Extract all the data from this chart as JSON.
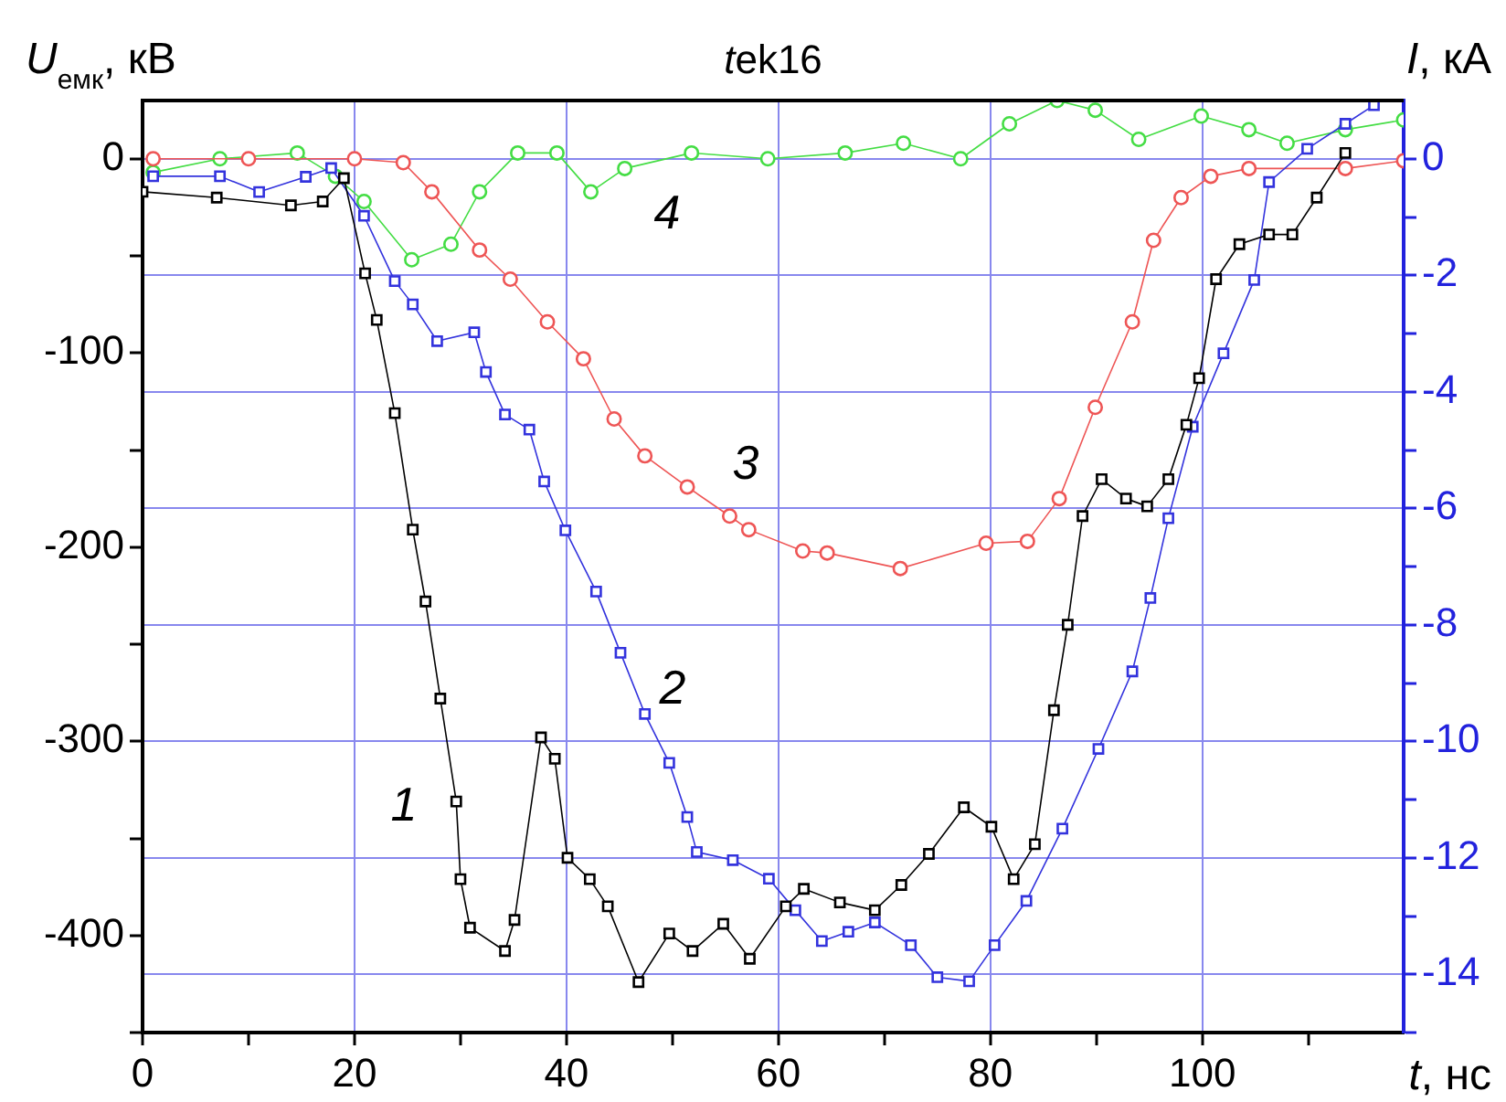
{
  "chart_data": {
    "type": "line",
    "title": "tek16",
    "xlabel": "t, нс",
    "ylabel": "U$_{емк}$, кВ",
    "y2label": "I, кА",
    "xlim": [
      0,
      119
    ],
    "xticks": [
      0,
      {
        "value": 10,
        "label": null
      },
      20,
      {
        "value": 30,
        "label": null
      },
      40,
      {
        "value": 50,
        "label": null
      },
      60,
      {
        "value": 70,
        "label": null
      },
      80,
      {
        "value": 90,
        "label": null
      },
      100,
      {
        "value": 110,
        "label": null
      }
    ],
    "ylim": [
      -450,
      30
    ],
    "yticks": [
      {
        "value": -450,
        "label": null
      },
      -400,
      {
        "value": -350,
        "label": null
      },
      -300,
      {
        "value": -250,
        "label": null
      },
      -200,
      {
        "value": -150,
        "label": null
      },
      -100,
      {
        "value": -50,
        "label": null
      },
      0
    ],
    "y2lim": [
      -15,
      1
    ],
    "y2ticks": [
      {
        "value": -15,
        "label": null
      },
      -14,
      {
        "value": -13,
        "label": null
      },
      -12,
      {
        "value": -11,
        "label": null
      },
      -10,
      {
        "value": -9,
        "label": null
      },
      -8,
      {
        "value": -7,
        "label": null
      },
      -6,
      {
        "value": -5,
        "label": null
      },
      -4,
      {
        "value": -3,
        "label": null
      },
      -2,
      {
        "value": -1,
        "label": null
      },
      0
    ],
    "grid": true,
    "legend": false,
    "series": [
      {
        "name": "1",
        "color": "#000000",
        "marker": "square",
        "x": [
          0,
          7,
          14,
          17,
          19,
          21,
          22.1,
          23.8,
          25.5,
          26.7,
          28.1,
          29.6,
          30,
          30.9,
          34.2,
          35.1,
          37.6,
          38.9,
          40.1,
          42.2,
          43.9,
          46.8,
          49.7,
          51.9,
          54.8,
          57.3,
          60.7,
          62.4,
          65.8,
          69.1,
          71.6,
          74.2,
          77.5,
          80.1,
          82.2,
          84.2,
          86,
          87.3,
          88.7,
          90.5,
          92.8,
          94.8,
          96.8,
          98.5,
          99.7,
          101.3,
          103.5,
          106.3,
          108.5,
          110.8,
          113.5
        ],
        "values": [
          -17,
          -20,
          -24,
          -22,
          -10,
          -59,
          -83,
          -131,
          -191,
          -228,
          -278,
          -331,
          -371,
          -396,
          -408,
          -392,
          -298,
          -309,
          -360,
          -371,
          -385,
          -424,
          -399,
          -408,
          -394,
          -412,
          -385,
          -376,
          -383,
          -387,
          -374,
          -358,
          -334,
          -344,
          -371,
          -353,
          -284,
          -240,
          -184,
          -165,
          -175,
          -179,
          -165,
          -137,
          -113,
          -62,
          -44,
          -39,
          -39,
          -20,
          3
        ]
      },
      {
        "name": "2",
        "color": "#3333dd",
        "marker": "square",
        "axis": "y2",
        "x": [
          1,
          7.3,
          11,
          15.4,
          17.8,
          20.9,
          23.8,
          25.5,
          27.8,
          31.3,
          32.4,
          34.2,
          36.5,
          37.9,
          39.9,
          42.8,
          45.1,
          47.4,
          49.7,
          51.4,
          52.3,
          55.7,
          59.1,
          61.6,
          64.1,
          66.6,
          69.1,
          72.5,
          75,
          78,
          80.4,
          83.4,
          86.8,
          90.2,
          93.4,
          95.1,
          96.8,
          99.1,
          102,
          104.9,
          106.3,
          109.9,
          113.5,
          116.2
        ],
        "values": [
          -0.3,
          -0.3,
          -0.57,
          -0.31,
          -0.16,
          -0.98,
          -2.1,
          -2.5,
          -3.13,
          -2.98,
          -3.66,
          -4.39,
          -4.65,
          -5.54,
          -6.38,
          -7.43,
          -8.48,
          -9.53,
          -10.37,
          -11.3,
          -11.9,
          -12.04,
          -12.36,
          -12.9,
          -13.43,
          -13.27,
          -13.11,
          -13.5,
          -14.05,
          -14.12,
          -13.5,
          -12.74,
          -11.5,
          -10.13,
          -8.8,
          -7.54,
          -6.17,
          -4.6,
          -3.34,
          -2.08,
          -0.4,
          0.17,
          0.6,
          0.92
        ]
      },
      {
        "name": "3",
        "color": "#ee5555",
        "marker": "circle",
        "x": [
          1,
          10,
          20,
          24.6,
          27.3,
          31.8,
          34.7,
          38.2,
          41.6,
          44.5,
          47.4,
          51.4,
          55.4,
          57.2,
          62.3,
          64.6,
          71.5,
          79.6,
          83.5,
          86.5,
          89.9,
          93.4,
          95.4,
          98,
          100.8,
          104.4,
          113.5,
          119
        ],
        "values": [
          0,
          0,
          0,
          -2,
          -17,
          -47,
          -62,
          -84,
          -103,
          -134,
          -153,
          -169,
          -184,
          -191,
          -202,
          -203,
          -211,
          -198,
          -197,
          -175,
          -128,
          -84,
          -42,
          -20,
          -9,
          -5,
          -5,
          -1
        ]
      },
      {
        "name": "4",
        "color": "#44dd44",
        "marker": "circle",
        "x": [
          1,
          7.3,
          14.6,
          18.2,
          20.9,
          25.4,
          29.1,
          31.8,
          35.4,
          39.1,
          42.3,
          45.5,
          51.8,
          59,
          66.3,
          71.8,
          77.2,
          81.8,
          86.3,
          89.9,
          94,
          99.9,
          104.4,
          108,
          113.5,
          119
        ],
        "values": [
          -7,
          0,
          3,
          -9,
          -22,
          -52,
          -44,
          -17,
          3,
          3,
          -17,
          -5,
          3,
          0,
          3,
          8,
          0,
          18,
          30,
          25,
          10,
          22,
          15,
          8,
          15,
          20
        ]
      }
    ]
  }
}
